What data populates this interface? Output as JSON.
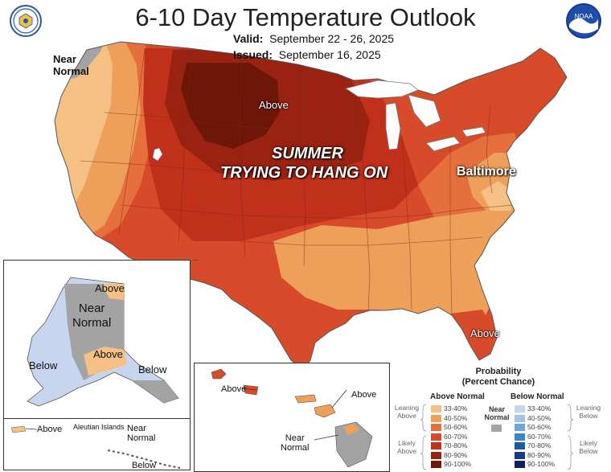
{
  "title": "6-10 Day Temperature Outlook",
  "valid_label": "Valid:",
  "valid_value": "September 22 - 26, 2025",
  "issued_label": "Issued:",
  "issued_value": "September 16, 2025",
  "noaa_logo_text": "NOAA",
  "annotation_line1": "SUMMER",
  "annotation_line2": "TRYING TO HANG ON",
  "city": "Baltimore",
  "labels": {
    "near_normal_nw_1": "Near",
    "near_normal_nw_2": "Normal",
    "above_center": "Above",
    "above_florida": "Above",
    "ak_above_north": "Above",
    "ak_near_normal_1": "Near",
    "ak_near_normal_2": "Normal",
    "ak_above_south": "Above",
    "ak_below_west": "Below",
    "ak_below_east": "Below",
    "aleutian_above": "Above",
    "aleutian_islands": "Aleutian Islands",
    "aleutian_near_1": "Near",
    "aleutian_near_2": "Normal",
    "aleutian_below": "Below",
    "hi_above_west": "Above",
    "hi_above_east": "Above",
    "hi_near_1": "Near",
    "hi_near_2": "Normal"
  },
  "legend": {
    "title_1": "Probability",
    "title_2": "(Percent Chance)",
    "above_header": "Above Normal",
    "below_header": "Below Normal",
    "near_header_1": "Near",
    "near_header_2": "Normal",
    "leaning_above_1": "Leaning",
    "leaning_above_2": "Above",
    "likely_above_1": "Likely",
    "likely_above_2": "Above",
    "leaning_below_1": "Leaning",
    "leaning_below_2": "Below",
    "likely_below_1": "Likely",
    "likely_below_2": "Below",
    "above_items": [
      {
        "label": "33-40%",
        "color": "#f5c083"
      },
      {
        "label": "40-50%",
        "color": "#eea05a"
      },
      {
        "label": "50-60%",
        "color": "#e5703e"
      },
      {
        "label": "60-70%",
        "color": "#d74a2a"
      },
      {
        "label": "70-80%",
        "color": "#c0301a"
      },
      {
        "label": "80-90%",
        "color": "#9a2210"
      },
      {
        "label": "90-100%",
        "color": "#6e1608"
      }
    ],
    "below_items": [
      {
        "label": "33-40%",
        "color": "#c7d6ee"
      },
      {
        "label": "40-50%",
        "color": "#a4c2e6"
      },
      {
        "label": "50-60%",
        "color": "#6fa6dd"
      },
      {
        "label": "60-70%",
        "color": "#3a86cc"
      },
      {
        "label": "70-80%",
        "color": "#2058a8"
      },
      {
        "label": "80-90%",
        "color": "#1a3c88"
      },
      {
        "label": "90-100%",
        "color": "#141e58"
      }
    ],
    "near_color": "#a3a3a3"
  },
  "colors": {
    "above_33_40": "#f5c083",
    "above_40_50": "#eea05a",
    "above_50_60": "#e5703e",
    "above_60_70": "#d74a2a",
    "above_70_80": "#c0301a",
    "above_80_90": "#9a2210",
    "near_normal": "#a3a3a3",
    "below_33_40": "#c7d6ee"
  },
  "icons": [
    "doc-seal-logo",
    "noaa-logo"
  ]
}
